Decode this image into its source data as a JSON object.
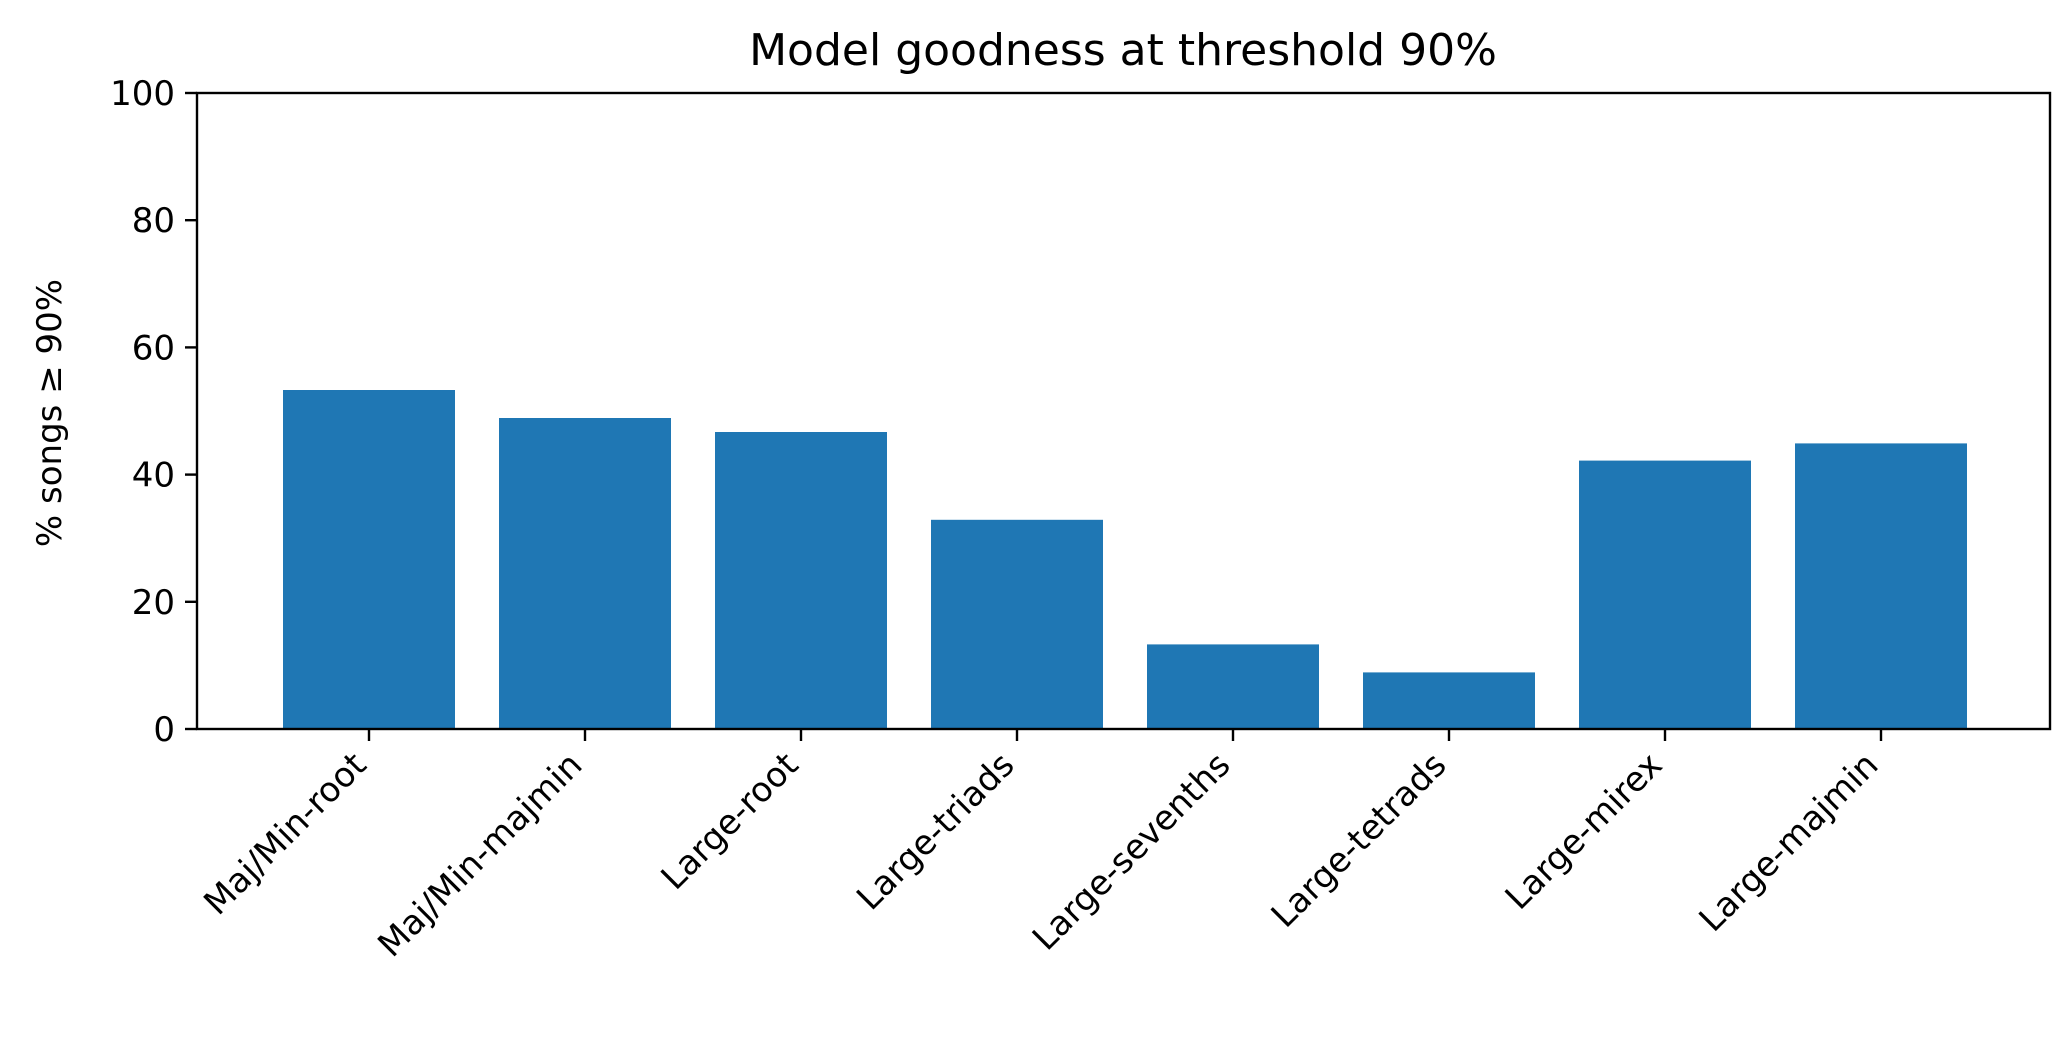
{
  "chart_data": {
    "type": "bar",
    "title": "Model goodness at threshold 90%",
    "xlabel": "",
    "ylabel": "% songs ≥ 90%",
    "categories": [
      "Maj/Min-root",
      "Maj/Min-majmin",
      "Large-root",
      "Large-triads",
      "Large-sevenths",
      "Large-tetrads",
      "Large-mirex",
      "Large-majmin"
    ],
    "values": [
      53.3,
      48.9,
      46.7,
      32.9,
      13.3,
      8.9,
      42.2,
      44.9
    ],
    "ylim": [
      0,
      100
    ],
    "yticks": [
      0,
      20,
      40,
      60,
      80,
      100
    ],
    "colors": {
      "bar": "#1f77b4",
      "axis": "#000000",
      "background": "#ffffff"
    },
    "grid": false,
    "legend": "none"
  }
}
